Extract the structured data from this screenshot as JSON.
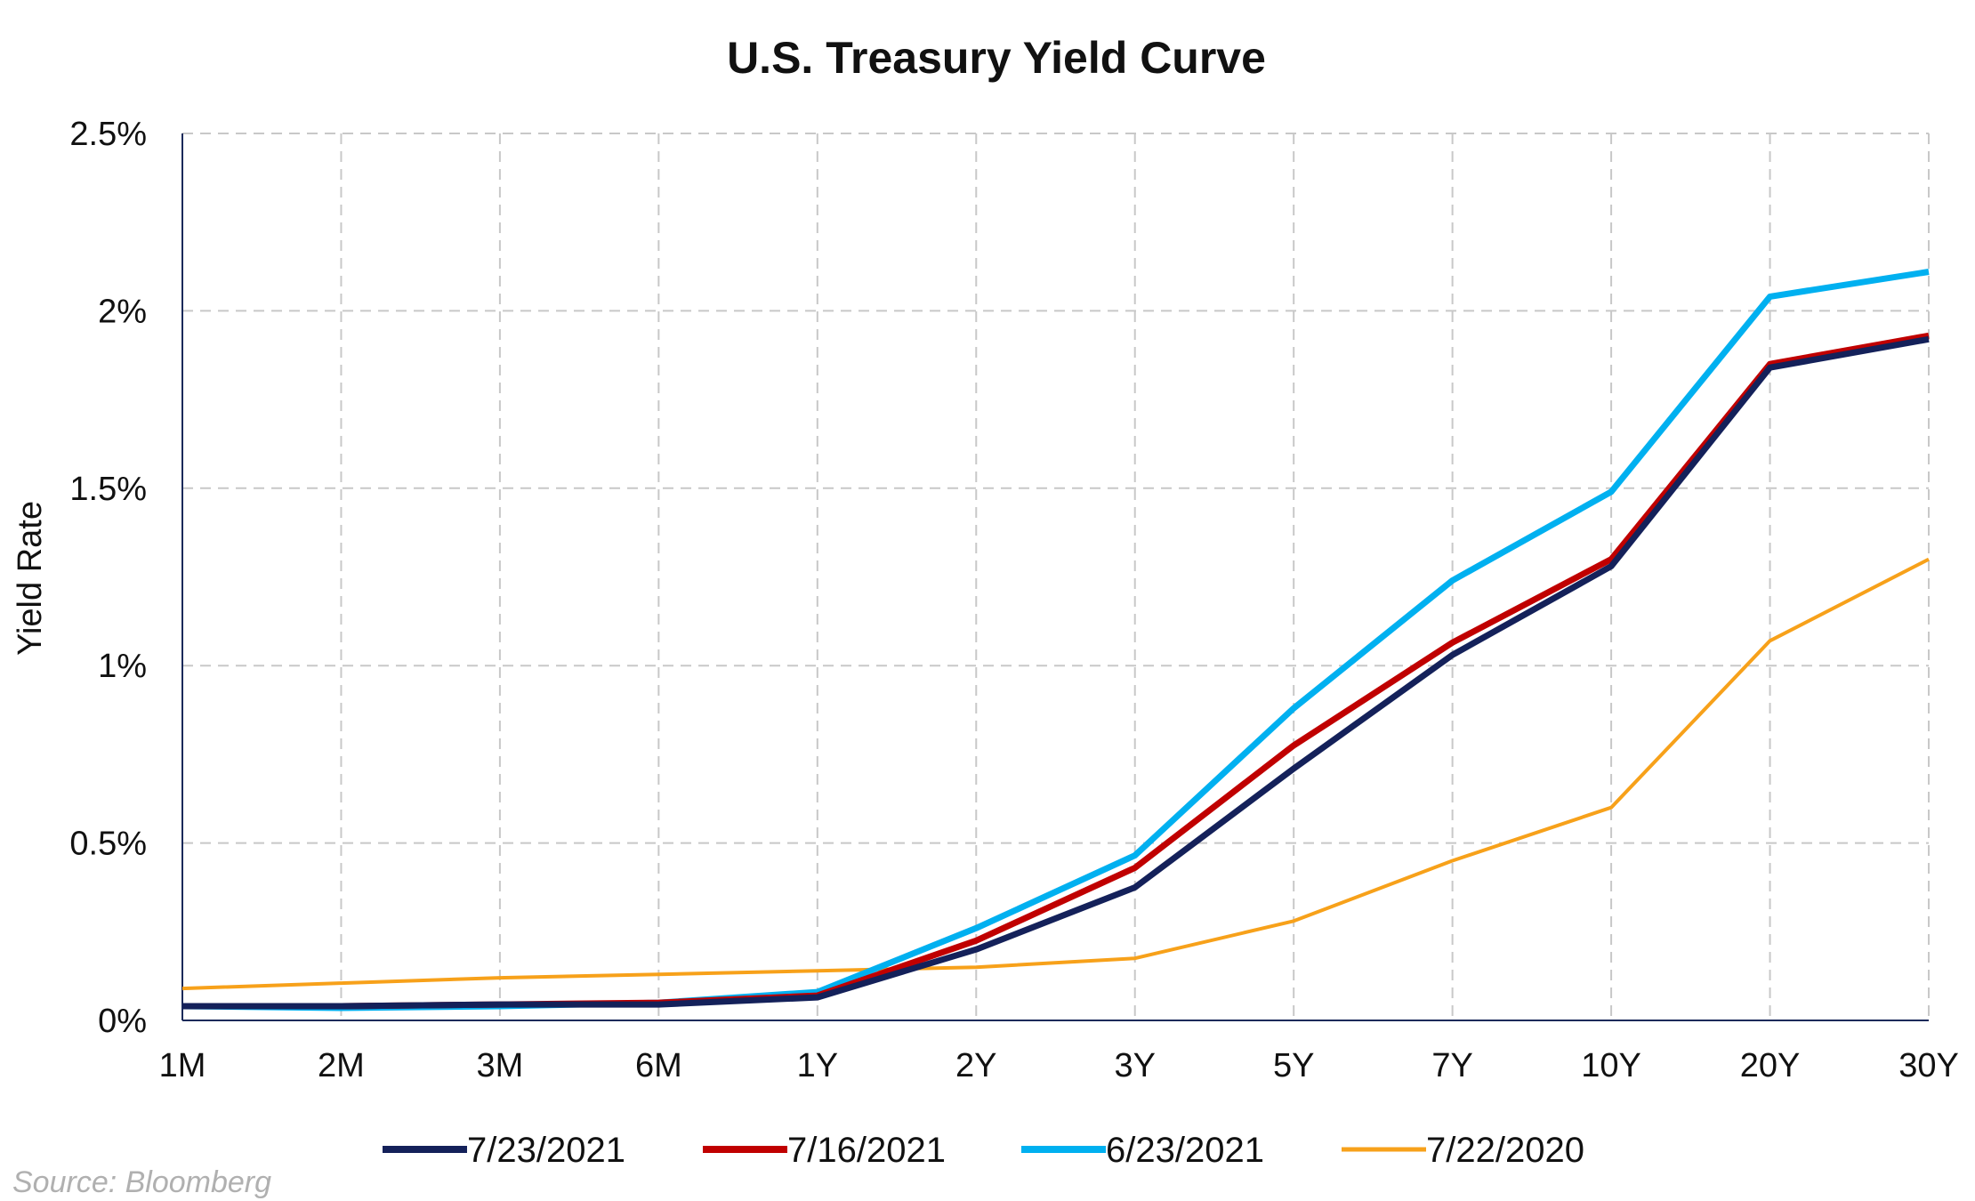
{
  "chart_data": {
    "type": "line",
    "title": "U.S. Treasury Yield Curve",
    "ylabel": "Yield Rate",
    "xlabel": "",
    "categories": [
      "1M",
      "2M",
      "3M",
      "6M",
      "1Y",
      "2Y",
      "3Y",
      "5Y",
      "7Y",
      "10Y",
      "20Y",
      "30Y"
    ],
    "ylim": [
      0,
      2.5
    ],
    "yticks": [
      {
        "value": 0,
        "label": "0%"
      },
      {
        "value": 0.5,
        "label": "0.5%"
      },
      {
        "value": 1,
        "label": "1%"
      },
      {
        "value": 1.5,
        "label": "1.5%"
      },
      {
        "value": 2,
        "label": "2%"
      },
      {
        "value": 2.5,
        "label": "2.5%"
      }
    ],
    "grid": true,
    "legend_position": "bottom",
    "series": [
      {
        "name": "7/23/2021",
        "color": "#14215a",
        "values": [
          0.04,
          0.04,
          0.045,
          0.045,
          0.065,
          0.2,
          0.375,
          0.71,
          1.03,
          1.28,
          1.84,
          1.92
        ]
      },
      {
        "name": "7/16/2021",
        "color": "#c00000",
        "values": [
          0.04,
          0.04,
          0.045,
          0.05,
          0.07,
          0.225,
          0.43,
          0.775,
          1.065,
          1.3,
          1.85,
          1.93
        ]
      },
      {
        "name": "6/23/2021",
        "color": "#00b0f0",
        "values": [
          0.04,
          0.035,
          0.04,
          0.05,
          0.08,
          0.26,
          0.465,
          0.88,
          1.24,
          1.49,
          2.04,
          2.11
        ]
      },
      {
        "name": "7/22/2020",
        "color": "#f7a11a",
        "values": [
          0.09,
          0.105,
          0.12,
          0.13,
          0.14,
          0.15,
          0.175,
          0.28,
          0.45,
          0.6,
          1.07,
          1.3
        ]
      }
    ]
  },
  "source": "Source: Bloomberg"
}
